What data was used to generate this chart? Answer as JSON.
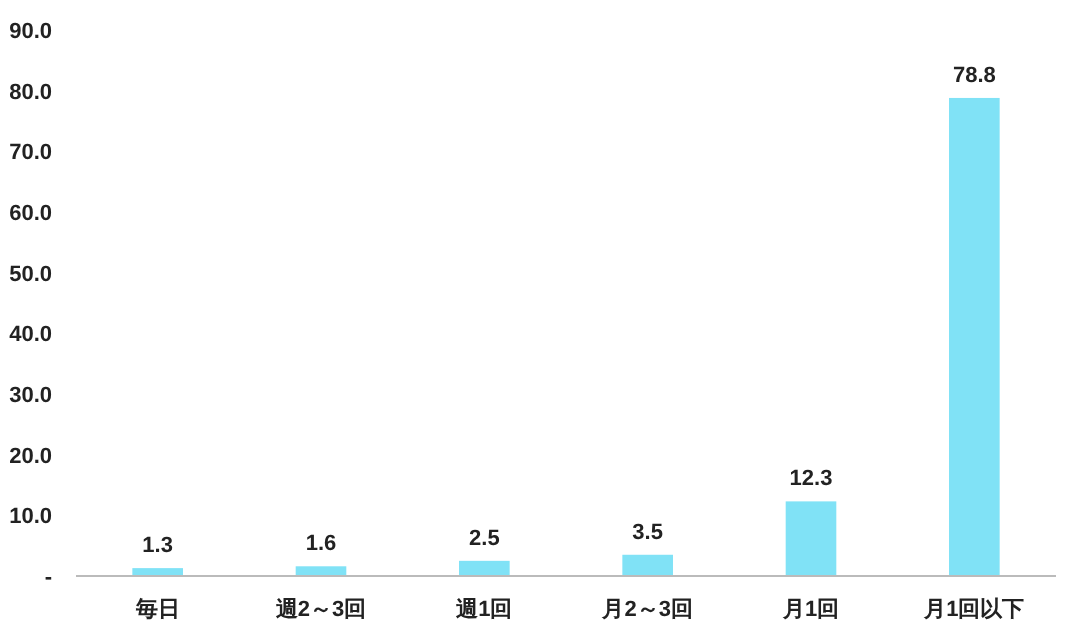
{
  "chart_data": {
    "type": "bar",
    "categories": [
      "毎日",
      "週2～3回",
      "週1回",
      "月2～3回",
      "月1回",
      "月1回以下"
    ],
    "values": [
      1.3,
      1.6,
      2.5,
      3.5,
      12.3,
      78.8
    ],
    "value_labels": [
      "1.3",
      "1.6",
      "2.5",
      "3.5",
      "12.3",
      "78.8"
    ],
    "color": "#80e2f6",
    "ylim": [
      0,
      90
    ],
    "yticks": [
      {
        "value": 0,
        "label": "-"
      },
      {
        "value": 10,
        "label": "10.0"
      },
      {
        "value": 20,
        "label": "20.0"
      },
      {
        "value": 30,
        "label": "30.0"
      },
      {
        "value": 40,
        "label": "40.0"
      },
      {
        "value": 50,
        "label": "50.0"
      },
      {
        "value": 60,
        "label": "60.0"
      },
      {
        "value": 70,
        "label": "70.0"
      },
      {
        "value": 80,
        "label": "80.0"
      },
      {
        "value": 90,
        "label": "90.0"
      }
    ],
    "grid": false
  }
}
